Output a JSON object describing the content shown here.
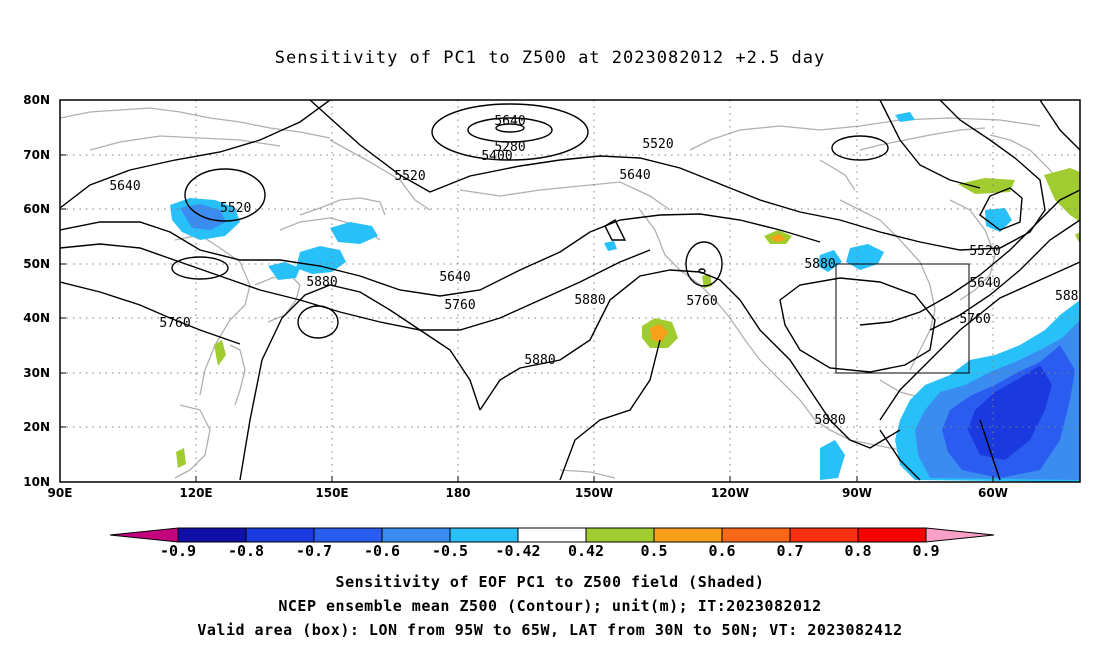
{
  "title": "Sensitivity of PC1 to Z500 at 2023082012 +2.5 day",
  "lat_labels": [
    "80N",
    "70N",
    "60N",
    "50N",
    "40N",
    "30N",
    "20N",
    "10N"
  ],
  "lon_labels": [
    "90E",
    "120E",
    "150E",
    "180",
    "150W",
    "120W",
    "90W",
    "60W"
  ],
  "contour_labels": [
    "5280",
    "5400",
    "5520",
    "5520",
    "5520",
    "5520",
    "5640",
    "5640",
    "5640",
    "5640",
    "5640",
    "5760",
    "5760",
    "5760",
    "5760",
    "5880",
    "5880",
    "5880",
    "5880",
    "5880",
    "588"
  ],
  "colorbar": {
    "labels": [
      "-0.9",
      "-0.8",
      "-0.7",
      "-0.6",
      "-0.5",
      "-0.42",
      "0.42",
      "0.5",
      "0.6",
      "0.7",
      "0.8",
      "0.9"
    ],
    "colors": [
      "#c4047c",
      "#1010a8",
      "#1a3ae0",
      "#2a5cf0",
      "#3a8cf0",
      "#28c0f8",
      "#ffffff",
      "#a0cc30",
      "#f8a018",
      "#f86818",
      "#f83010",
      "#f80000",
      "#f8a0c8"
    ]
  },
  "valid_box": {
    "lon_from": "95W",
    "lon_to": "65W",
    "lat_from": "30N",
    "lat_to": "50N"
  },
  "footer": {
    "line1": "Sensitivity of EOF PC1 to Z500 field (Shaded)",
    "line2": "NCEP ensemble mean Z500 (Contour); unit(m); IT:2023082012",
    "line3": "Valid area (box): LON from 95W to 65W, LAT from 30N to 50N; VT: 2023082412"
  },
  "colors": {
    "frame": "#000000",
    "coast": "#b0b0b0",
    "contour": "#000000",
    "grid": "#808080"
  }
}
